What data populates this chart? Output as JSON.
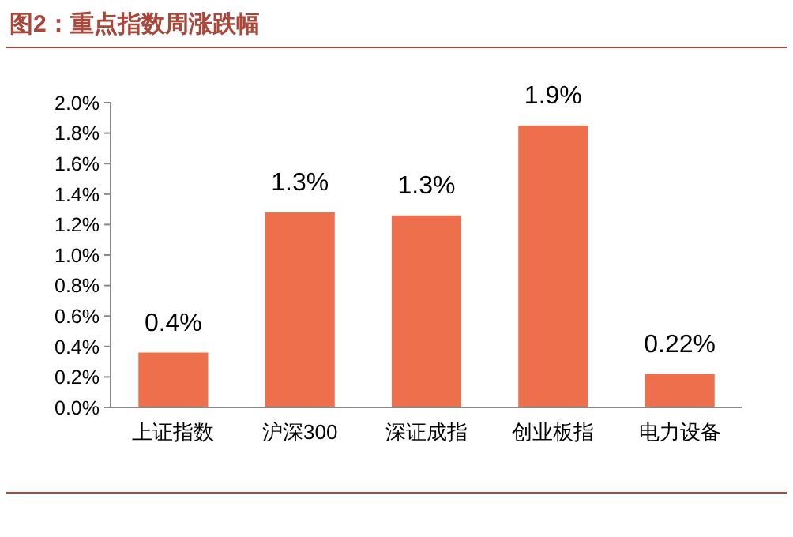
{
  "chart_data": {
    "type": "bar",
    "title": "图2：重点指数周涨跌幅",
    "categories": [
      "上证指数",
      "沪深300",
      "深证成指",
      "创业板指",
      "电力设备"
    ],
    "values": [
      0.36,
      1.28,
      1.26,
      1.85,
      0.22
    ],
    "value_labels": [
      "0.4%",
      "1.3%",
      "1.3%",
      "1.9%",
      "0.22%"
    ],
    "color": "#ee6f4b",
    "ylim": [
      0,
      2
    ],
    "yticks": [
      {
        "value": 0,
        "label": "0.0%"
      },
      {
        "value": 0.2,
        "label": "0.2%"
      },
      {
        "value": 0.4,
        "label": "0.4%"
      },
      {
        "value": 0.6,
        "label": "0.6%"
      },
      {
        "value": 0.8,
        "label": "0.8%"
      },
      {
        "value": 1,
        "label": "1.0%"
      },
      {
        "value": 1.2,
        "label": "1.2%"
      },
      {
        "value": 1.4,
        "label": "1.4%"
      },
      {
        "value": 1.6,
        "label": "1.6%"
      },
      {
        "value": 1.8,
        "label": "1.8%"
      },
      {
        "value": 2,
        "label": "2.0%"
      }
    ],
    "grid": false
  }
}
